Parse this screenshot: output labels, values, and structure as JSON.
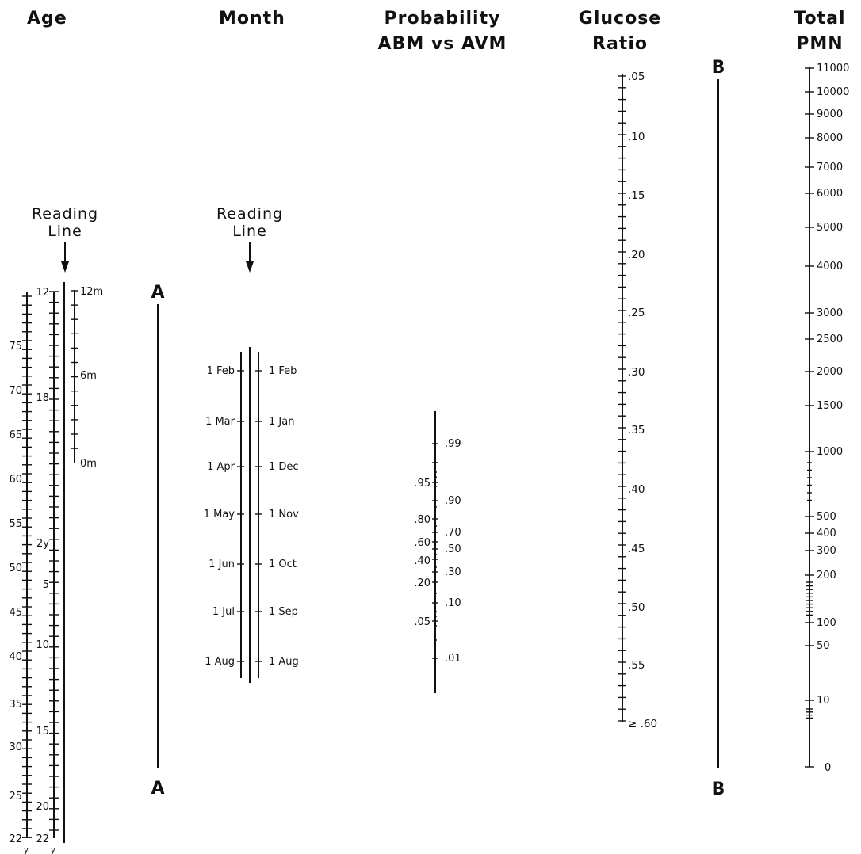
{
  "headers": {
    "age": "Age",
    "month": "Month",
    "probability": [
      "Probability",
      "ABM vs AVM"
    ],
    "glucose": [
      "Glucose",
      "Ratio"
    ],
    "pmn": [
      "Total",
      "PMN"
    ]
  },
  "reading_line_label": [
    "Reading",
    "Line"
  ],
  "pivot_labels": {
    "a": "A",
    "b": "B"
  },
  "age_scale": {
    "years_left": [
      "75",
      "70",
      "65",
      "60",
      "55",
      "50",
      "45",
      "40",
      "35",
      "30",
      "25",
      "22"
    ],
    "years_left_unit": "y",
    "years_inner": [
      "12",
      "18",
      "2y",
      "5",
      "10",
      "15",
      "20",
      "22"
    ],
    "years_inner_unit": "y",
    "months": [
      "12m",
      "6m",
      "0m"
    ]
  },
  "month_scale": {
    "left": [
      "1 Feb",
      "1 Mar",
      "1 Apr",
      "1 May",
      "1 Jun",
      "1 Jul",
      "1 Aug"
    ],
    "right": [
      "1 Feb",
      "1 Jan",
      "1 Dec",
      "1 Nov",
      "1 Oct",
      "1 Sep",
      "1 Aug"
    ]
  },
  "probability_scale": {
    "left": [
      ".95",
      ".80",
      ".60",
      ".40",
      ".20",
      ".05"
    ],
    "right": [
      ".99",
      ".90",
      ".70",
      ".50",
      ".30",
      ".10",
      ".01"
    ]
  },
  "glucose_scale": [
    ".05",
    ".10",
    ".15",
    ".20",
    ".25",
    ".30",
    ".35",
    ".40",
    ".45",
    ".50",
    ".55",
    "≥ .60"
  ],
  "pmn_scale": [
    "11000",
    "10000",
    "9000",
    "8000",
    "7000",
    "6000",
    "5000",
    "4000",
    "3000",
    "2500",
    "2000",
    "1500",
    "1000",
    "500",
    "400",
    "300",
    "200",
    "100",
    "50",
    "10",
    "0"
  ]
}
